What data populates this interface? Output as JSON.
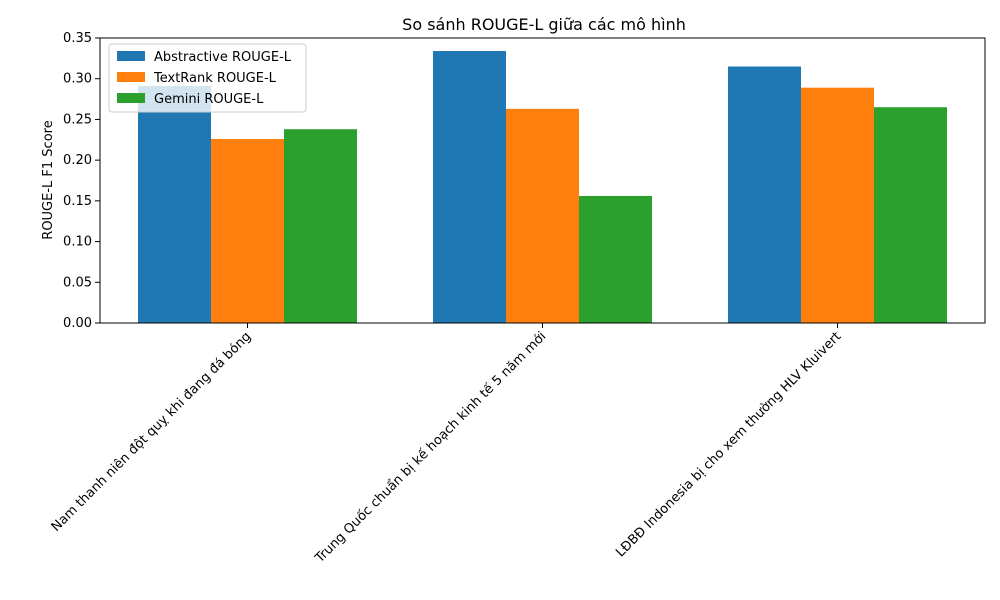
{
  "chart_data": {
    "type": "bar",
    "title": "So sánh ROUGE-L giữa các mô hình",
    "xlabel": "",
    "ylabel": "ROUGE-L F1 Score",
    "ylim": [
      0,
      0.35
    ],
    "yticks": [
      "0.00",
      "0.05",
      "0.10",
      "0.15",
      "0.20",
      "0.25",
      "0.30",
      "0.35"
    ],
    "categories": [
      "Nam thanh niên đột quỵ khi đang đá bóng",
      "Trung Quốc chuẩn bị kế hoạch kinh tế 5 năm mới",
      "LĐBĐ Indonesia bị cho xem thường HLV Kluivert"
    ],
    "series": [
      {
        "name": "Abstractive ROUGE-L",
        "color": "#1f77b4",
        "values": [
          0.291,
          0.334,
          0.315
        ]
      },
      {
        "name": "TextRank ROUGE-L",
        "color": "#ff7f0e",
        "values": [
          0.226,
          0.263,
          0.289
        ]
      },
      {
        "name": "Gemini ROUGE-L",
        "color": "#2ca02c",
        "values": [
          0.238,
          0.156,
          0.265
        ]
      }
    ],
    "legend_position": "top-left",
    "grid": false
  }
}
